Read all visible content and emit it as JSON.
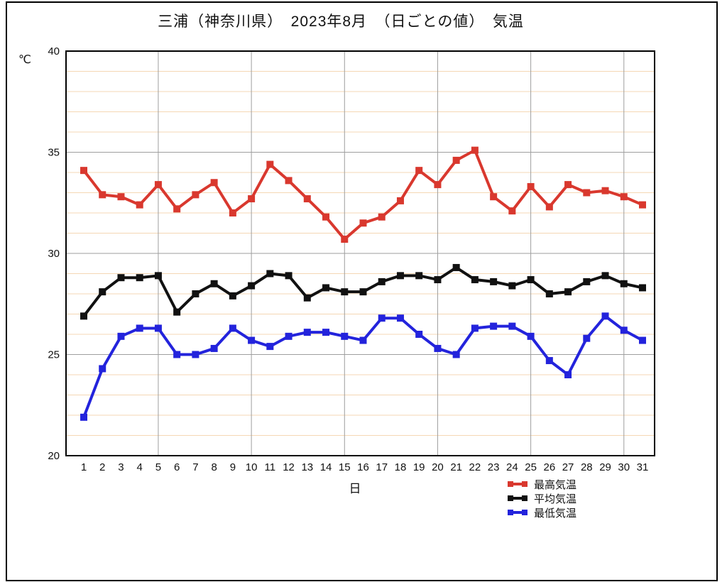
{
  "chart": {
    "title": "三浦（神奈川県）　2023年8月　（日ごとの値）　気温",
    "y_unit": "℃",
    "x_title": "日"
  },
  "chart_data": {
    "type": "line",
    "title": "三浦（神奈川県）　2023年8月　（日ごとの値）　気温",
    "xlabel": "日",
    "ylabel": "℃",
    "ylim": [
      20,
      40
    ],
    "yticks": [
      20,
      25,
      30,
      35,
      40
    ],
    "x": [
      1,
      2,
      3,
      4,
      5,
      6,
      7,
      8,
      9,
      10,
      11,
      12,
      13,
      14,
      15,
      16,
      17,
      18,
      19,
      20,
      21,
      22,
      23,
      24,
      25,
      26,
      27,
      28,
      29,
      30,
      31
    ],
    "grid": {
      "minor_color": "#f5d7b4",
      "major_color": "#9e9e9e",
      "x_gridlines": [
        5,
        10,
        15,
        20,
        25,
        30
      ]
    },
    "legend_position": "bottom-right",
    "series": [
      {
        "id": "max-temp",
        "name": "最高気温",
        "color": "#d9382e",
        "values": [
          34.1,
          32.9,
          32.8,
          32.4,
          33.4,
          32.2,
          32.9,
          33.5,
          32.0,
          32.7,
          34.4,
          33.6,
          32.7,
          31.8,
          30.7,
          31.5,
          31.8,
          32.6,
          34.1,
          33.4,
          34.6,
          35.1,
          32.8,
          32.1,
          33.3,
          32.3,
          33.4,
          33.0,
          33.1,
          32.8,
          32.4
        ]
      },
      {
        "id": "avg-temp",
        "name": "平均気温",
        "color": "#111111",
        "values": [
          26.9,
          28.1,
          28.8,
          28.8,
          28.9,
          27.1,
          28.0,
          28.5,
          27.9,
          28.4,
          29.0,
          28.9,
          27.8,
          28.3,
          28.1,
          28.1,
          28.6,
          28.9,
          28.9,
          28.7,
          29.3,
          28.7,
          28.6,
          28.4,
          28.7,
          28.0,
          28.1,
          28.6,
          28.9,
          28.5,
          28.3
        ]
      },
      {
        "id": "min-temp",
        "name": "最低気温",
        "color": "#2323dc",
        "values": [
          21.9,
          24.3,
          25.9,
          26.3,
          26.3,
          25.0,
          25.0,
          25.3,
          26.3,
          25.7,
          25.4,
          25.9,
          26.1,
          26.1,
          25.9,
          25.7,
          26.8,
          26.8,
          26.0,
          25.3,
          25.0,
          26.3,
          26.4,
          26.4,
          25.9,
          24.7,
          24.0,
          25.8,
          26.9,
          26.2,
          25.7
        ]
      }
    ]
  }
}
